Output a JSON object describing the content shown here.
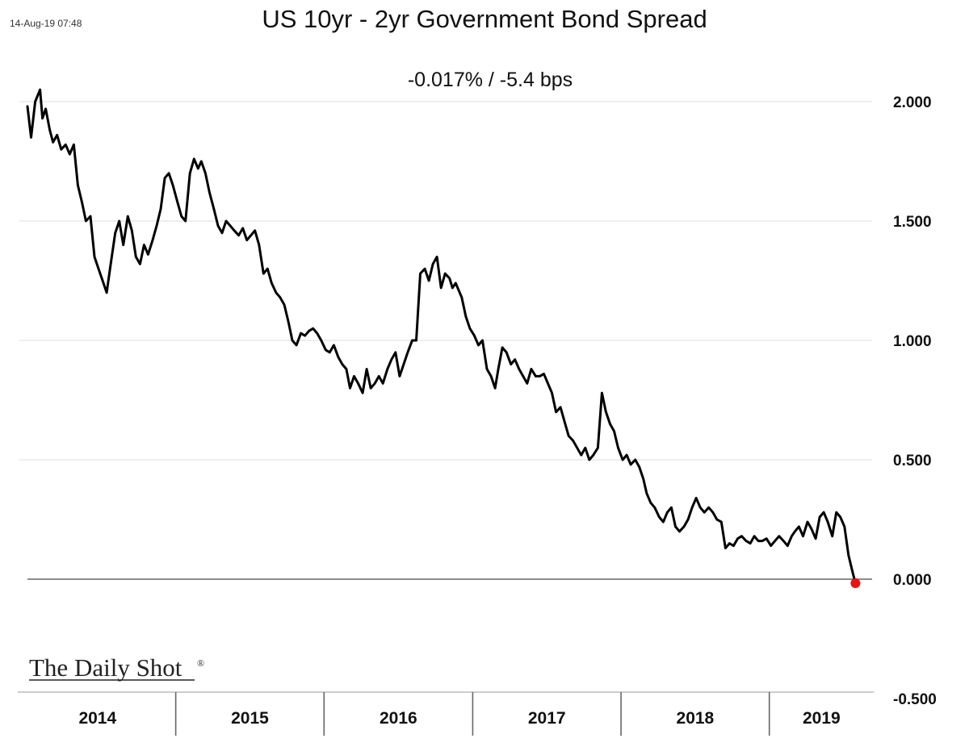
{
  "header": {
    "timestamp": "14-Aug-19 07:48",
    "title": "US 10yr - 2yr Government Bond Spread",
    "subtitle": "-0.017%  /  -5.4 bps"
  },
  "branding": {
    "logo_text": "The Daily Shot",
    "logo_mark": "®"
  },
  "colors": {
    "line": "#000000",
    "gridline": "#e3e3e3",
    "zero_line": "#8c8c8c",
    "last_point": "#ee1111"
  },
  "chart_data": {
    "type": "line",
    "title": "US 10yr - 2yr Government Bond Spread",
    "subtitle": "-0.017%  /  -5.4 bps",
    "xlabel": "",
    "ylabel": "",
    "y_axis_position": "right",
    "ylim": [
      -0.5,
      2.0
    ],
    "y_ticks": [
      2.0,
      1.5,
      1.0,
      0.5,
      0.0,
      -0.5
    ],
    "y_tick_labels": [
      "2.000",
      "1.500",
      "1.000",
      "0.500",
      "0.000",
      "-0.500"
    ],
    "x_year_labels": [
      "2014",
      "2015",
      "2016",
      "2017",
      "2018",
      "2019"
    ],
    "xlim": [
      "2014-01-01",
      "2019-09-15"
    ],
    "grid": true,
    "last_value": -0.017,
    "last_value_marker": true,
    "series": [
      {
        "values_x": [
          "2014-01-01",
          "2014-01-10",
          "2014-01-20",
          "2014-02-01",
          "2014-02-07",
          "2014-02-15",
          "2014-02-25",
          "2014-03-05",
          "2014-03-15",
          "2014-03-25",
          "2014-04-05",
          "2014-04-15",
          "2014-04-25",
          "2014-05-05",
          "2014-05-15",
          "2014-05-25",
          "2014-06-05",
          "2014-06-15",
          "2014-06-25",
          "2014-07-05",
          "2014-07-15",
          "2014-07-25",
          "2014-08-05",
          "2014-08-15",
          "2014-08-25",
          "2014-09-05",
          "2014-09-15",
          "2014-09-25",
          "2014-10-05",
          "2014-10-15",
          "2014-10-25",
          "2014-11-05",
          "2014-11-15",
          "2014-11-25",
          "2014-12-05",
          "2014-12-15",
          "2014-12-25",
          "2015-01-05",
          "2015-01-15",
          "2015-01-25",
          "2015-02-05",
          "2015-02-15",
          "2015-02-25",
          "2015-03-05",
          "2015-03-15",
          "2015-03-25",
          "2015-04-05",
          "2015-04-15",
          "2015-04-25",
          "2015-05-05",
          "2015-05-15",
          "2015-05-25",
          "2015-06-05",
          "2015-06-15",
          "2015-06-25",
          "2015-07-05",
          "2015-07-15",
          "2015-07-25",
          "2015-08-05",
          "2015-08-15",
          "2015-08-25",
          "2015-09-05",
          "2015-09-15",
          "2015-09-25",
          "2015-10-05",
          "2015-10-15",
          "2015-10-25",
          "2015-11-05",
          "2015-11-15",
          "2015-11-25",
          "2015-12-05",
          "2015-12-15",
          "2015-12-25",
          "2016-01-05",
          "2016-01-15",
          "2016-01-25",
          "2016-02-05",
          "2016-02-15",
          "2016-02-25",
          "2016-03-05",
          "2016-03-15",
          "2016-03-25",
          "2016-04-05",
          "2016-04-15",
          "2016-04-25",
          "2016-05-05",
          "2016-05-15",
          "2016-05-25",
          "2016-06-05",
          "2016-06-15",
          "2016-06-25",
          "2016-07-05",
          "2016-07-15",
          "2016-07-25",
          "2016-08-05",
          "2016-08-15",
          "2016-08-25",
          "2016-09-05",
          "2016-09-15",
          "2016-09-25",
          "2016-10-05",
          "2016-10-15",
          "2016-10-25",
          "2016-11-05",
          "2016-11-12",
          "2016-11-20",
          "2016-12-05",
          "2016-12-15",
          "2016-12-25",
          "2017-01-05",
          "2017-01-15",
          "2017-01-25",
          "2017-02-05",
          "2017-02-15",
          "2017-02-25",
          "2017-03-05",
          "2017-03-15",
          "2017-03-25",
          "2017-04-05",
          "2017-04-15",
          "2017-04-25",
          "2017-05-05",
          "2017-05-15",
          "2017-05-25",
          "2017-06-05",
          "2017-06-15",
          "2017-06-25",
          "2017-07-05",
          "2017-07-15",
          "2017-07-25",
          "2017-08-05",
          "2017-08-15",
          "2017-08-25",
          "2017-09-05",
          "2017-09-15",
          "2017-09-25",
          "2017-10-05",
          "2017-10-15",
          "2017-10-25",
          "2017-11-05",
          "2017-11-15",
          "2017-11-25",
          "2017-12-05",
          "2017-12-15",
          "2017-12-25",
          "2018-01-05",
          "2018-01-15",
          "2018-01-25",
          "2018-02-05",
          "2018-02-15",
          "2018-02-25",
          "2018-03-05",
          "2018-03-15",
          "2018-03-25",
          "2018-04-05",
          "2018-04-15",
          "2018-04-25",
          "2018-05-05",
          "2018-05-15",
          "2018-05-25",
          "2018-06-05",
          "2018-06-15",
          "2018-06-25",
          "2018-07-05",
          "2018-07-15",
          "2018-07-25",
          "2018-08-05",
          "2018-08-15",
          "2018-08-25",
          "2018-09-05",
          "2018-09-15",
          "2018-09-25",
          "2018-10-05",
          "2018-10-15",
          "2018-10-25",
          "2018-11-05",
          "2018-11-15",
          "2018-11-25",
          "2018-12-05",
          "2018-12-15",
          "2018-12-25",
          "2019-01-05",
          "2019-01-15",
          "2019-01-25",
          "2019-02-05",
          "2019-02-15",
          "2019-02-25",
          "2019-03-05",
          "2019-03-15",
          "2019-03-25",
          "2019-04-05",
          "2019-04-15",
          "2019-04-25",
          "2019-05-05",
          "2019-05-15",
          "2019-05-25",
          "2019-06-05",
          "2019-06-15",
          "2019-06-25",
          "2019-07-05",
          "2019-07-15",
          "2019-07-25",
          "2019-08-01",
          "2019-08-07",
          "2019-08-14"
        ],
        "values": [
          1.98,
          1.85,
          2.0,
          2.05,
          1.93,
          1.97,
          1.88,
          1.83,
          1.86,
          1.8,
          1.82,
          1.78,
          1.82,
          1.65,
          1.58,
          1.5,
          1.52,
          1.35,
          1.3,
          1.25,
          1.2,
          1.32,
          1.45,
          1.5,
          1.4,
          1.52,
          1.46,
          1.35,
          1.32,
          1.4,
          1.36,
          1.42,
          1.48,
          1.55,
          1.68,
          1.7,
          1.65,
          1.58,
          1.52,
          1.5,
          1.7,
          1.76,
          1.72,
          1.75,
          1.7,
          1.62,
          1.55,
          1.48,
          1.45,
          1.5,
          1.48,
          1.46,
          1.44,
          1.47,
          1.42,
          1.44,
          1.46,
          1.4,
          1.28,
          1.3,
          1.24,
          1.2,
          1.18,
          1.15,
          1.08,
          1.0,
          0.98,
          1.03,
          1.02,
          1.04,
          1.05,
          1.03,
          1.0,
          0.96,
          0.95,
          0.98,
          0.93,
          0.9,
          0.88,
          0.8,
          0.85,
          0.82,
          0.78,
          0.88,
          0.8,
          0.82,
          0.85,
          0.82,
          0.88,
          0.92,
          0.95,
          0.85,
          0.9,
          0.95,
          1.0,
          1.0,
          1.28,
          1.3,
          1.25,
          1.32,
          1.35,
          1.22,
          1.28,
          1.26,
          1.22,
          1.24,
          1.18,
          1.1,
          1.05,
          1.02,
          0.98,
          1.0,
          0.88,
          0.85,
          0.8,
          0.88,
          0.97,
          0.95,
          0.9,
          0.92,
          0.88,
          0.85,
          0.82,
          0.88,
          0.85,
          0.85,
          0.86,
          0.82,
          0.78,
          0.7,
          0.72,
          0.66,
          0.6,
          0.58,
          0.55,
          0.52,
          0.55,
          0.5,
          0.52,
          0.55,
          0.78,
          0.7,
          0.65,
          0.62,
          0.55,
          0.5,
          0.52,
          0.48,
          0.5,
          0.47,
          0.42,
          0.36,
          0.32,
          0.3,
          0.26,
          0.24,
          0.28,
          0.3,
          0.22,
          0.2,
          0.22,
          0.25,
          0.3,
          0.34,
          0.3,
          0.28,
          0.3,
          0.28,
          0.25,
          0.24,
          0.13,
          0.15,
          0.14,
          0.17,
          0.18,
          0.16,
          0.15,
          0.18,
          0.16,
          0.16,
          0.17,
          0.14,
          0.16,
          0.18,
          0.16,
          0.14,
          0.18,
          0.2,
          0.22,
          0.18,
          0.24,
          0.21,
          0.17,
          0.26,
          0.28,
          0.24,
          0.18,
          0.28,
          0.26,
          0.22,
          0.1,
          0.03,
          -0.017
        ]
      }
    ]
  }
}
